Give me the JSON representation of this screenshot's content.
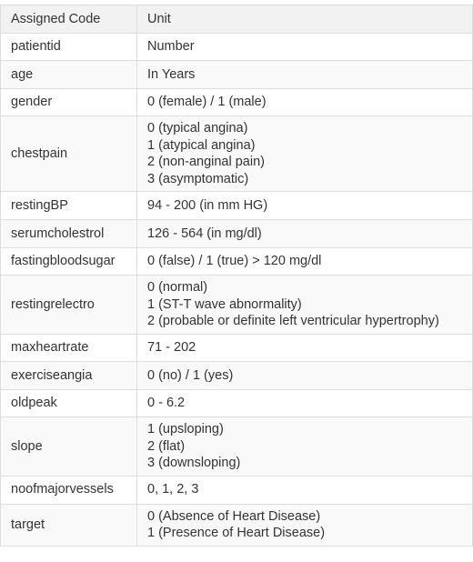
{
  "table": {
    "headers": [
      "Assigned Code",
      "Unit"
    ],
    "rows": [
      {
        "code": "patientid",
        "unit": [
          "Number"
        ]
      },
      {
        "code": "age",
        "unit": [
          "In Years"
        ]
      },
      {
        "code": "gender",
        "unit": [
          "0 (female) / 1 (male)"
        ]
      },
      {
        "code": "chestpain",
        "unit": [
          "0 (typical angina)",
          "1 (atypical angina)",
          "2 (non-anginal pain)",
          "3 (asymptomatic)"
        ]
      },
      {
        "code": "restingBP",
        "unit": [
          "94 - 200 (in mm HG)"
        ]
      },
      {
        "code": "serumcholestrol",
        "unit": [
          "126 - 564 (in mg/dl)"
        ]
      },
      {
        "code": "fastingbloodsugar",
        "unit": [
          "0 (false) / 1 (true) > 120 mg/dl"
        ]
      },
      {
        "code": "restingrelectro",
        "unit": [
          "0 (normal)",
          "1 (ST-T wave abnormality)",
          "2 (probable or definite left ventricular hypertrophy)"
        ]
      },
      {
        "code": "maxheartrate",
        "unit": [
          "71 - 202"
        ]
      },
      {
        "code": "exerciseangia",
        "unit": [
          "0 (no) / 1 (yes)"
        ]
      },
      {
        "code": "oldpeak",
        "unit": [
          "0 - 6.2"
        ]
      },
      {
        "code": "slope",
        "unit": [
          "1 (upsloping)",
          "2 (flat)",
          "3 (downsloping)"
        ]
      },
      {
        "code": "noofmajorvessels",
        "unit": [
          "0, 1, 2, 3"
        ]
      },
      {
        "code": "target",
        "unit": [
          "0 (Absence of Heart Disease)",
          "1 (Presence of Heart Disease)"
        ]
      }
    ]
  }
}
